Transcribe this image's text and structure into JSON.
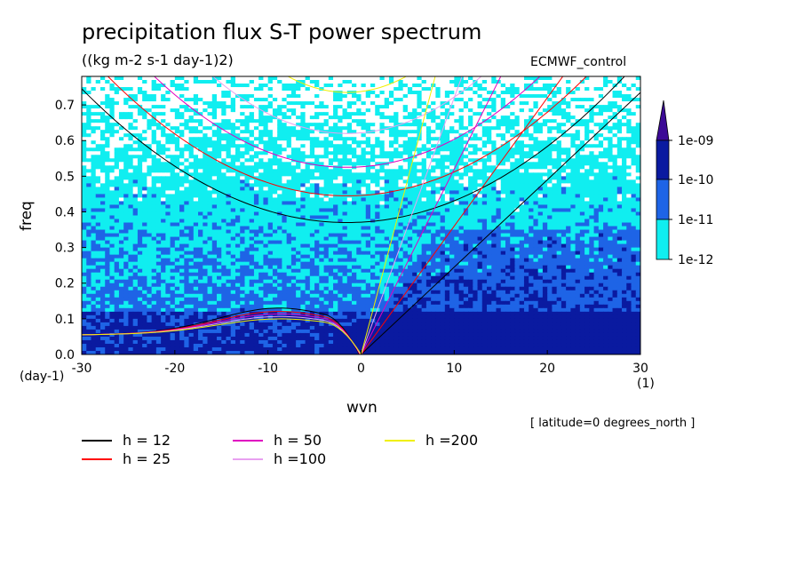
{
  "title": "precipitation flux S-T power spectrum",
  "subtitle": "((kg m-2 s-1 day-1)2)",
  "source_label": "ECMWF_control",
  "latitude_note": "[ latitude=0 degrees_north ]",
  "legend": [
    {
      "label": "h = 12",
      "color": "#000000"
    },
    {
      "label": "h = 25",
      "color": "#ff0000"
    },
    {
      "label": "h = 50",
      "color": "#e000c0"
    },
    {
      "label": "h =100",
      "color": "#e8a0f0"
    },
    {
      "label": "h =200",
      "color": "#f0f000"
    }
  ],
  "chart_data": {
    "type": "heatmap",
    "title": "precipitation flux S-T power spectrum",
    "subtitle": "((kg m-2 s-1 day-1)2)",
    "xlabel": "wvn",
    "ylabel": "freq",
    "x_unit": "(1)",
    "y_unit": "(day-1)",
    "xlim": [
      -30,
      30
    ],
    "ylim": [
      0,
      0.78
    ],
    "x_ticks": [
      -30,
      -20,
      -10,
      0,
      10,
      20,
      30
    ],
    "y_ticks": [
      0.0,
      0.1,
      0.2,
      0.3,
      0.4,
      0.5,
      0.6,
      0.7
    ],
    "x_tick_labels": [
      "-30",
      "-20",
      "-10",
      "0",
      "10",
      "20",
      "30"
    ],
    "y_tick_labels": [
      "0.0",
      "0.1",
      "0.2",
      "0.3",
      "0.4",
      "0.5",
      "0.6",
      "0.7"
    ],
    "colorbar": {
      "labels": [
        "1e-09",
        "1e-10",
        "1e-11",
        "1e-12"
      ],
      "levels": [
        1e-09,
        1e-10,
        1e-11,
        1e-12
      ],
      "colors": [
        "#3c0a96",
        "#0a1aa0",
        "#1e64e6",
        "#10eef0",
        "#ffffff"
      ],
      "extend": "max"
    },
    "background_color": "#ffffff",
    "dispersion_curves": [
      {
        "h": 12,
        "color": "#000000"
      },
      {
        "h": 25,
        "color": "#ff0000"
      },
      {
        "h": 50,
        "color": "#e000c0"
      },
      {
        "h": 100,
        "color": "#e8a0f0"
      },
      {
        "h": 200,
        "color": "#f0f000"
      }
    ],
    "contour_extra_color": "#ffff80",
    "kelvin_wave_labelled": false,
    "grid": false
  }
}
